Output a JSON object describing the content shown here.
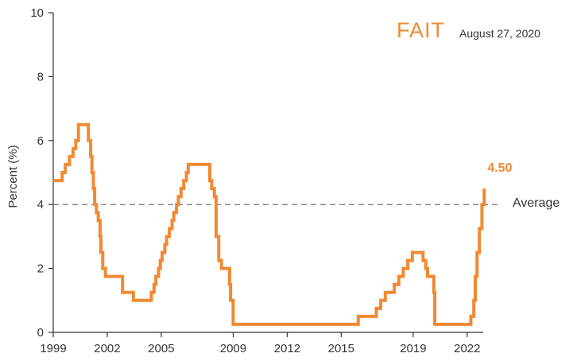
{
  "chart_data": {
    "type": "line",
    "title": "",
    "xlabel": "",
    "ylabel": "Percent (%)",
    "xlim": [
      1999,
      2022.67
    ],
    "ylim": [
      0,
      10
    ],
    "x_ticks": [
      1999,
      2002,
      2005,
      2009,
      2012,
      2015,
      2019,
      2022
    ],
    "x_tick_labels": [
      "1999",
      "2002",
      "2005",
      "2009",
      "2012",
      "2015",
      "2019",
      "2022"
    ],
    "y_ticks": [
      0,
      2,
      4,
      6,
      8,
      10
    ],
    "y_tick_labels": [
      "0",
      "2",
      "4",
      "6",
      "8",
      "10"
    ],
    "grid": false,
    "step": true,
    "series": [
      {
        "color": "#F08A33",
        "points": [
          [
            1999.0,
            4.75
          ],
          [
            1999.5,
            5.0
          ],
          [
            1999.67,
            5.25
          ],
          [
            1999.9,
            5.5
          ],
          [
            2000.1,
            5.75
          ],
          [
            2000.25,
            6.0
          ],
          [
            2000.4,
            6.5
          ],
          [
            2000.95,
            6.0
          ],
          [
            2001.08,
            5.5
          ],
          [
            2001.15,
            5.0
          ],
          [
            2001.23,
            4.5
          ],
          [
            2001.3,
            4.0
          ],
          [
            2001.4,
            3.75
          ],
          [
            2001.5,
            3.5
          ],
          [
            2001.6,
            3.0
          ],
          [
            2001.65,
            2.5
          ],
          [
            2001.75,
            2.0
          ],
          [
            2001.9,
            1.75
          ],
          [
            2002.85,
            1.25
          ],
          [
            2003.45,
            1.0
          ],
          [
            2004.45,
            1.25
          ],
          [
            2004.6,
            1.5
          ],
          [
            2004.7,
            1.75
          ],
          [
            2004.85,
            2.0
          ],
          [
            2004.95,
            2.25
          ],
          [
            2005.05,
            2.5
          ],
          [
            2005.2,
            2.75
          ],
          [
            2005.3,
            3.0
          ],
          [
            2005.45,
            3.25
          ],
          [
            2005.6,
            3.5
          ],
          [
            2005.7,
            3.75
          ],
          [
            2005.85,
            4.0
          ],
          [
            2005.95,
            4.25
          ],
          [
            2006.1,
            4.5
          ],
          [
            2006.25,
            4.75
          ],
          [
            2006.4,
            5.0
          ],
          [
            2006.5,
            5.25
          ],
          [
            2007.7,
            4.75
          ],
          [
            2007.8,
            4.5
          ],
          [
            2007.95,
            4.25
          ],
          [
            2008.05,
            3.0
          ],
          [
            2008.2,
            2.25
          ],
          [
            2008.35,
            2.0
          ],
          [
            2008.8,
            1.5
          ],
          [
            2008.85,
            1.0
          ],
          [
            2009.0,
            0.25
          ],
          [
            2015.95,
            0.5
          ],
          [
            2016.95,
            0.75
          ],
          [
            2017.2,
            1.0
          ],
          [
            2017.45,
            1.25
          ],
          [
            2017.95,
            1.5
          ],
          [
            2018.2,
            1.75
          ],
          [
            2018.45,
            2.0
          ],
          [
            2018.7,
            2.25
          ],
          [
            2018.95,
            2.5
          ],
          [
            2019.55,
            2.25
          ],
          [
            2019.7,
            2.0
          ],
          [
            2019.8,
            1.75
          ],
          [
            2020.15,
            1.25
          ],
          [
            2020.2,
            0.25
          ],
          [
            2022.2,
            0.5
          ],
          [
            2022.37,
            1.0
          ],
          [
            2022.45,
            1.75
          ],
          [
            2022.55,
            2.5
          ],
          [
            2022.68,
            3.25
          ],
          [
            2022.82,
            4.0
          ],
          [
            2022.95,
            4.5
          ]
        ],
        "end_value": 4.5
      }
    ],
    "reference_line": {
      "value": 4.0,
      "style": "dashed",
      "label": "Average"
    },
    "end_label": "4.50",
    "annotation": {
      "text": "FAIT",
      "subtext": "August 27, 2020",
      "placement": "top-right",
      "color": "#F08A33"
    },
    "colors": {
      "line": "#F08A33",
      "axis": "#333333",
      "reference": "#555555"
    }
  }
}
